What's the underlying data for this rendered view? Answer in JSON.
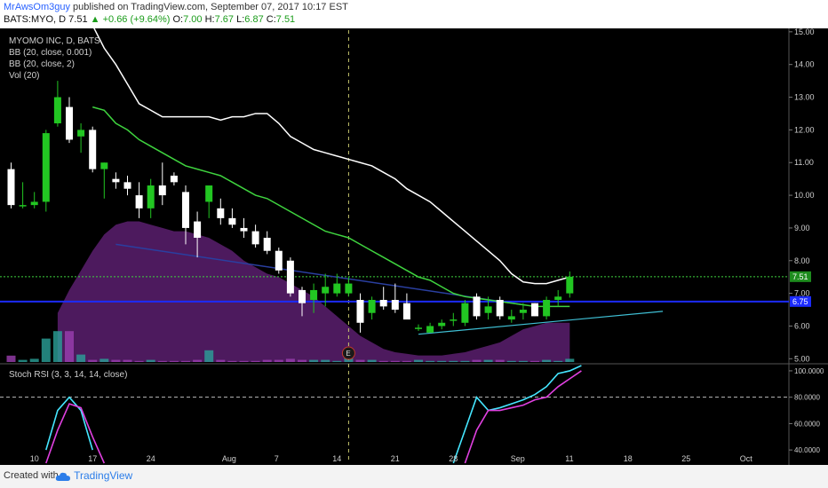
{
  "header": {
    "author": "MrAwsOm3guy",
    "published": "published on TradingView.com, September 07, 2017 10:17 EST",
    "symbol": "BATS:MYO, D",
    "last": "7.51",
    "change": "+0.66 (+9.64%)",
    "o_label": "O:",
    "o_val": "7.00",
    "h_label": "H:",
    "h_val": "7.67",
    "l_label": "L:",
    "l_val": "6.87",
    "c_label": "C:",
    "c_val": "7.51"
  },
  "legend": {
    "title": "MYOMO INC, D, BATS",
    "bb1": "BB (20, close, 0.001)",
    "bb2": "BB (20, close, 2)",
    "vol": "Vol (20)",
    "stoch": "Stoch RSI (3, 3, 14, 14, close)"
  },
  "footer": {
    "created": "Created with",
    "brand": "TradingView"
  },
  "colors": {
    "up": "#22c622",
    "down": "#ffffff",
    "bb_mid": "#3fd43f",
    "bb_upper": "#ffffff",
    "volume_area": "#5a1e6e",
    "hline": "#1c2bff",
    "trendline": "#2a3fa0",
    "support": "#3fbfd4",
    "stoch_k": "#45e6ff",
    "stoch_d": "#e040e0"
  },
  "chart_data": [
    {
      "type": "candlestick",
      "title": "MYOMO INC, D, BATS",
      "x_ticks": [
        "10",
        "17",
        "24",
        "Aug",
        "7",
        "14",
        "21",
        "28",
        "Sep",
        "11",
        "18",
        "25",
        "Oct"
      ],
      "y_ticks": [
        "15.00",
        "14.00",
        "13.00",
        "12.00",
        "11.00",
        "10.00",
        "9.00",
        "8.00",
        "7.00",
        "6.00",
        "5.00"
      ],
      "ylim": [
        4.9,
        15.05
      ],
      "price_labels": {
        "last": "7.51",
        "line": "6.75"
      },
      "event_marker": "E",
      "candles": [
        {
          "o": 10.8,
          "h": 11.0,
          "l": 9.6,
          "c": 9.7
        },
        {
          "o": 9.7,
          "h": 10.4,
          "l": 9.6,
          "c": 9.7
        },
        {
          "o": 9.7,
          "h": 10.1,
          "l": 9.6,
          "c": 9.8
        },
        {
          "o": 9.8,
          "h": 12.0,
          "l": 9.5,
          "c": 11.9
        },
        {
          "o": 12.2,
          "h": 13.5,
          "l": 12.1,
          "c": 13.0
        },
        {
          "o": 12.7,
          "h": 13.0,
          "l": 11.6,
          "c": 11.7
        },
        {
          "o": 11.8,
          "h": 12.2,
          "l": 11.3,
          "c": 12.0
        },
        {
          "o": 12.0,
          "h": 12.1,
          "l": 10.7,
          "c": 10.8
        },
        {
          "o": 10.8,
          "h": 11.0,
          "l": 9.9,
          "c": 11.0
        },
        {
          "o": 10.5,
          "h": 10.7,
          "l": 10.2,
          "c": 10.4
        },
        {
          "o": 10.4,
          "h": 10.6,
          "l": 10.0,
          "c": 10.2
        },
        {
          "o": 10.0,
          "h": 10.4,
          "l": 9.3,
          "c": 9.6
        },
        {
          "o": 9.6,
          "h": 10.5,
          "l": 9.3,
          "c": 10.3
        },
        {
          "o": 10.3,
          "h": 11.0,
          "l": 9.7,
          "c": 10.0
        },
        {
          "o": 10.6,
          "h": 10.7,
          "l": 10.3,
          "c": 10.4
        },
        {
          "o": 10.1,
          "h": 10.3,
          "l": 8.5,
          "c": 9.0
        },
        {
          "o": 9.2,
          "h": 9.5,
          "l": 8.1,
          "c": 8.7
        },
        {
          "o": 9.8,
          "h": 10.3,
          "l": 9.3,
          "c": 10.3
        },
        {
          "o": 9.6,
          "h": 9.9,
          "l": 9.1,
          "c": 9.3
        },
        {
          "o": 9.3,
          "h": 9.6,
          "l": 9.0,
          "c": 9.1
        },
        {
          "o": 9.0,
          "h": 9.3,
          "l": 8.7,
          "c": 8.9
        },
        {
          "o": 8.9,
          "h": 9.1,
          "l": 8.4,
          "c": 8.5
        },
        {
          "o": 8.7,
          "h": 8.9,
          "l": 8.2,
          "c": 8.3
        },
        {
          "o": 8.3,
          "h": 8.4,
          "l": 7.6,
          "c": 7.7
        },
        {
          "o": 8.0,
          "h": 8.1,
          "l": 6.9,
          "c": 7.0
        },
        {
          "o": 7.1,
          "h": 7.2,
          "l": 6.3,
          "c": 6.7
        },
        {
          "o": 6.8,
          "h": 7.3,
          "l": 6.4,
          "c": 7.1
        },
        {
          "o": 7.0,
          "h": 7.6,
          "l": 6.6,
          "c": 7.2
        },
        {
          "o": 7.0,
          "h": 7.6,
          "l": 6.9,
          "c": 7.3
        },
        {
          "o": 7.0,
          "h": 7.5,
          "l": 6.9,
          "c": 7.3
        },
        {
          "o": 6.8,
          "h": 7.0,
          "l": 5.8,
          "c": 6.1
        },
        {
          "o": 6.4,
          "h": 6.9,
          "l": 6.2,
          "c": 6.8
        },
        {
          "o": 6.8,
          "h": 7.2,
          "l": 6.5,
          "c": 6.6
        },
        {
          "o": 6.8,
          "h": 7.3,
          "l": 6.4,
          "c": 6.5
        },
        {
          "o": 6.7,
          "h": 7.0,
          "l": 6.3,
          "c": 6.2
        },
        {
          "o": 5.95,
          "h": 6.05,
          "l": 5.85,
          "c": 5.95
        },
        {
          "o": 5.8,
          "h": 6.1,
          "l": 5.8,
          "c": 6.0
        },
        {
          "o": 6.0,
          "h": 6.2,
          "l": 5.9,
          "c": 6.1
        },
        {
          "o": 6.2,
          "h": 6.4,
          "l": 6.0,
          "c": 6.2
        },
        {
          "o": 6.1,
          "h": 6.8,
          "l": 6.0,
          "c": 6.7
        },
        {
          "o": 6.9,
          "h": 7.0,
          "l": 6.2,
          "c": 6.3
        },
        {
          "o": 6.4,
          "h": 6.9,
          "l": 6.2,
          "c": 6.6
        },
        {
          "o": 6.8,
          "h": 6.9,
          "l": 6.2,
          "c": 6.3
        },
        {
          "o": 6.2,
          "h": 6.5,
          "l": 6.1,
          "c": 6.3
        },
        {
          "o": 6.4,
          "h": 6.7,
          "l": 6.2,
          "c": 6.5
        },
        {
          "o": 6.7,
          "h": 6.7,
          "l": 6.3,
          "c": 6.3
        },
        {
          "o": 6.3,
          "h": 6.9,
          "l": 6.2,
          "c": 6.8
        },
        {
          "o": 6.8,
          "h": 7.1,
          "l": 6.6,
          "c": 6.9
        },
        {
          "o": 7.0,
          "h": 7.67,
          "l": 6.87,
          "c": 7.51
        }
      ],
      "volume": [
        6,
        2,
        3,
        22,
        29,
        29,
        7,
        2,
        3,
        2,
        2,
        1,
        2,
        1,
        1,
        1,
        2,
        11,
        2,
        1,
        1,
        1,
        2,
        2,
        3,
        2,
        2,
        2,
        1,
        4,
        2,
        2,
        1,
        1,
        1,
        2,
        1,
        1,
        1,
        1,
        2,
        2,
        2,
        1,
        1,
        1,
        2,
        1,
        3
      ],
      "volume_ylim": [
        0,
        100
      ],
      "bb_middle": [
        null,
        null,
        null,
        null,
        null,
        null,
        null,
        12.7,
        12.6,
        12.2,
        12.0,
        11.7,
        11.5,
        11.3,
        11.1,
        10.9,
        10.8,
        10.7,
        10.6,
        10.4,
        10.2,
        10.0,
        9.9,
        9.7,
        9.5,
        9.3,
        9.1,
        8.9,
        8.8,
        8.7,
        8.5,
        8.3,
        8.1,
        7.9,
        7.7,
        7.5,
        7.4,
        7.2,
        7.0,
        6.9,
        6.85,
        6.8,
        6.75,
        6.7,
        6.65,
        6.6,
        6.6,
        6.6,
        6.6
      ],
      "bb_upper": [
        null,
        null,
        null,
        null,
        null,
        null,
        null,
        15.2,
        14.5,
        14.0,
        13.4,
        12.8,
        12.6,
        12.4,
        12.4,
        12.4,
        12.4,
        12.4,
        12.3,
        12.4,
        12.4,
        12.5,
        12.5,
        12.2,
        11.8,
        11.6,
        11.4,
        11.3,
        11.2,
        11.1,
        11.0,
        10.9,
        10.7,
        10.5,
        10.2,
        10.0,
        9.8,
        9.5,
        9.2,
        8.9,
        8.6,
        8.3,
        8.0,
        7.6,
        7.35,
        7.3,
        7.3,
        7.4,
        7.5
      ],
      "volume_area": [
        null,
        null,
        null,
        null,
        1.5,
        2.2,
        2.8,
        3.4,
        3.9,
        4.2,
        4.3,
        4.3,
        4.2,
        4.1,
        4.0,
        4.0,
        3.9,
        3.8,
        3.6,
        3.4,
        3.1,
        2.9,
        2.7,
        2.6,
        2.4,
        2.2,
        2.0,
        1.7,
        1.4,
        1.1,
        0.8,
        0.6,
        0.4,
        0.3,
        0.25,
        0.2,
        0.2,
        0.2,
        0.25,
        0.3,
        0.4,
        0.5,
        0.6,
        0.8,
        1.0,
        1.1,
        1.2,
        1.2,
        1.2
      ],
      "support_line": {
        "from": [
          35,
          5.75
        ],
        "to": [
          56,
          6.45
        ]
      },
      "downtrend_line": {
        "from": [
          9,
          8.5
        ],
        "to": [
          44,
          6.65
        ]
      },
      "hline_level": 6.75
    },
    {
      "type": "line",
      "title": "Stoch RSI (3, 3, 14, 14, close)",
      "y_ticks": [
        "100.0000",
        "80.0000",
        "60.0000",
        "40.0000"
      ],
      "ylim": [
        30,
        104
      ],
      "level_line": 80,
      "series": [
        {
          "points": [
            [
              3,
              40
            ],
            [
              4,
              70
            ],
            [
              5,
              80
            ],
            [
              6,
              70
            ],
            [
              7,
              40
            ]
          ]
        },
        {
          "points": [
            [
              3,
              30
            ],
            [
              4,
              55
            ],
            [
              5,
              75
            ],
            [
              6,
              72
            ],
            [
              7,
              50
            ],
            [
              8,
              30
            ]
          ]
        },
        {
          "points": [
            [
              38,
              30
            ],
            [
              39,
              55
            ],
            [
              40,
              80
            ],
            [
              41,
              70
            ],
            [
              42,
              72
            ],
            [
              43,
              75
            ],
            [
              44,
              78
            ],
            [
              45,
              82
            ],
            [
              46,
              88
            ],
            [
              47,
              98
            ],
            [
              48,
              100
            ],
            [
              49,
              104
            ]
          ]
        },
        {
          "points": [
            [
              39,
              30
            ],
            [
              40,
              55
            ],
            [
              41,
              70
            ],
            [
              42,
              70
            ],
            [
              43,
              72
            ],
            [
              44,
              74
            ],
            [
              45,
              78
            ],
            [
              46,
              80
            ],
            [
              47,
              88
            ],
            [
              48,
              94
            ],
            [
              49,
              100
            ]
          ]
        }
      ]
    }
  ]
}
